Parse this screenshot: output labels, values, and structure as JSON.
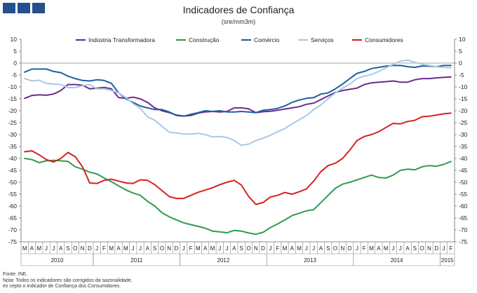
{
  "header": {
    "title": "Indicadores de Confiança",
    "subtitle": "(sre/mm3m)"
  },
  "footer": {
    "source": "Fonte: INE.",
    "note_line1": "Nota: Todos os indicadores são corrigidos da sazonalidade,",
    "note_line2": "ex cepto o indicador de Confiança dos Consumidores."
  },
  "chart_data": {
    "type": "line",
    "title": "Indicadores de Confiança",
    "subtitle": "(sre/mm3m)",
    "xlabel": "",
    "ylabel": "",
    "ylim": [
      -75,
      10
    ],
    "yticks": [
      10,
      5,
      0,
      -5,
      -10,
      -15,
      -20,
      -25,
      -30,
      -35,
      -40,
      -45,
      -50,
      -55,
      -60,
      -65,
      -70,
      -75
    ],
    "grid": false,
    "legend_position": "top",
    "month_labels": [
      "M",
      "A",
      "M",
      "J",
      "J",
      "A",
      "S",
      "O",
      "N",
      "D",
      "J",
      "F",
      "M",
      "A",
      "M",
      "J",
      "J",
      "A",
      "S",
      "O",
      "N",
      "D",
      "J",
      "F",
      "M",
      "A",
      "M",
      "J",
      "J",
      "A",
      "S",
      "O",
      "N",
      "D",
      "J",
      "F",
      "M",
      "A",
      "M",
      "J",
      "J",
      "A",
      "S",
      "O",
      "N",
      "D",
      "J",
      "F",
      "M",
      "A",
      "M",
      "J",
      "J",
      "A",
      "S",
      "O",
      "N",
      "D",
      "J",
      "F"
    ],
    "years": [
      {
        "label": "2010",
        "start": 0,
        "count": 10
      },
      {
        "label": "2011",
        "start": 10,
        "count": 12
      },
      {
        "label": "2012",
        "start": 22,
        "count": 12
      },
      {
        "label": "2013",
        "start": 34,
        "count": 12
      },
      {
        "label": "2014",
        "start": 46,
        "count": 12
      },
      {
        "label": "2015",
        "start": 58,
        "count": 2
      }
    ],
    "series": [
      {
        "name": "Indústria Transformadora",
        "color": "#6a2c8e",
        "values": [
          -14.8,
          -13.6,
          -13.3,
          -13.5,
          -13.0,
          -11.5,
          -9.0,
          -9.0,
          -9.3,
          -10.8,
          -10.5,
          -10.2,
          -10.8,
          -14.5,
          -14.8,
          -14.3,
          -15.0,
          -16.5,
          -18.8,
          -20.0,
          -20.8,
          -21.8,
          -22.2,
          -22.0,
          -21.0,
          -20.5,
          -20.3,
          -20.5,
          -20.3,
          -18.8,
          -18.8,
          -19.2,
          -20.8,
          -20.4,
          -20.2,
          -19.8,
          -19.3,
          -18.8,
          -18.3,
          -17.3,
          -16.8,
          -15.3,
          -13.8,
          -12.3,
          -11.5,
          -11.0,
          -10.5,
          -9.0,
          -8.3,
          -8.0,
          -7.8,
          -7.5,
          -8.0,
          -8.0,
          -7.0,
          -6.5,
          -6.5,
          -6.2,
          -6.0,
          -5.8
        ]
      },
      {
        "name": "Construção",
        "color": "#2e9c4e",
        "values": [
          -40.0,
          -40.5,
          -41.8,
          -41.0,
          -40.8,
          -41.0,
          -41.3,
          -43.5,
          -44.5,
          -45.8,
          -46.5,
          -48.2,
          -49.8,
          -51.5,
          -53.2,
          -54.5,
          -55.5,
          -58.0,
          -60.0,
          -62.8,
          -64.5,
          -65.8,
          -67.0,
          -67.8,
          -68.5,
          -69.3,
          -70.5,
          -70.8,
          -71.2,
          -70.2,
          -70.5,
          -71.3,
          -71.8,
          -71.0,
          -69.0,
          -67.5,
          -65.8,
          -64.0,
          -63.0,
          -62.0,
          -61.5,
          -58.5,
          -55.5,
          -52.5,
          -50.8,
          -50.0,
          -49.0,
          -48.0,
          -47.0,
          -48.0,
          -48.2,
          -47.0,
          -45.0,
          -44.5,
          -44.8,
          -43.5,
          -43.0,
          -43.3,
          -42.5,
          -41.3
        ]
      },
      {
        "name": "Comércio",
        "color": "#1f5fa0",
        "values": [
          -3.8,
          -2.5,
          -2.5,
          -2.5,
          -3.5,
          -4.0,
          -5.5,
          -6.5,
          -7.3,
          -7.5,
          -7.0,
          -7.3,
          -8.5,
          -12.5,
          -15.0,
          -16.5,
          -18.0,
          -18.8,
          -19.5,
          -19.5,
          -20.5,
          -22.0,
          -22.3,
          -21.5,
          -20.8,
          -20.0,
          -20.3,
          -20.0,
          -20.5,
          -20.5,
          -20.3,
          -20.5,
          -20.8,
          -19.8,
          -19.5,
          -19.0,
          -18.0,
          -16.5,
          -15.5,
          -14.8,
          -14.5,
          -13.0,
          -12.5,
          -10.8,
          -8.8,
          -6.5,
          -4.3,
          -3.5,
          -2.3,
          -1.8,
          -1.3,
          -1.0,
          -1.0,
          -1.5,
          -1.8,
          -1.2,
          -1.3,
          -1.5,
          -1.0,
          -1.0
        ]
      },
      {
        "name": "Serviços",
        "color": "#a9c8e8",
        "values": [
          -6.5,
          -7.5,
          -7.2,
          -8.5,
          -8.8,
          -9.0,
          -10.3,
          -10.3,
          -9.5,
          -9.0,
          -10.8,
          -10.8,
          -11.5,
          -12.5,
          -14.5,
          -17.0,
          -19.0,
          -22.5,
          -24.0,
          -26.5,
          -29.0,
          -29.3,
          -29.8,
          -29.8,
          -29.5,
          -30.0,
          -31.0,
          -30.8,
          -31.2,
          -32.5,
          -34.5,
          -34.0,
          -32.5,
          -31.5,
          -30.3,
          -28.8,
          -27.5,
          -25.5,
          -23.8,
          -22.0,
          -19.5,
          -17.5,
          -15.0,
          -12.5,
          -10.5,
          -8.8,
          -6.5,
          -5.5,
          -4.8,
          -3.5,
          -2.0,
          -0.5,
          0.8,
          1.3,
          0.3,
          -0.5,
          -1.0,
          -1.5,
          -1.8,
          -2.0
        ]
      },
      {
        "name": "Consumidores",
        "color": "#d42222",
        "values": [
          -37.2,
          -36.8,
          -38.5,
          -40.5,
          -41.5,
          -40.0,
          -37.5,
          -39.3,
          -43.5,
          -50.3,
          -50.5,
          -49.2,
          -48.7,
          -49.5,
          -50.3,
          -50.5,
          -49.0,
          -49.2,
          -51.0,
          -53.5,
          -56.0,
          -56.8,
          -56.8,
          -55.5,
          -54.2,
          -53.3,
          -52.3,
          -51.0,
          -50.0,
          -49.2,
          -51.2,
          -56.0,
          -59.3,
          -58.5,
          -56.2,
          -55.5,
          -54.3,
          -55.0,
          -54.0,
          -52.8,
          -49.5,
          -45.5,
          -43.0,
          -42.0,
          -40.0,
          -36.5,
          -32.5,
          -30.8,
          -30.0,
          -28.8,
          -27.0,
          -25.3,
          -25.5,
          -24.5,
          -24.0,
          -22.5,
          -22.3,
          -21.8,
          -21.3,
          -21.0
        ]
      }
    ]
  }
}
